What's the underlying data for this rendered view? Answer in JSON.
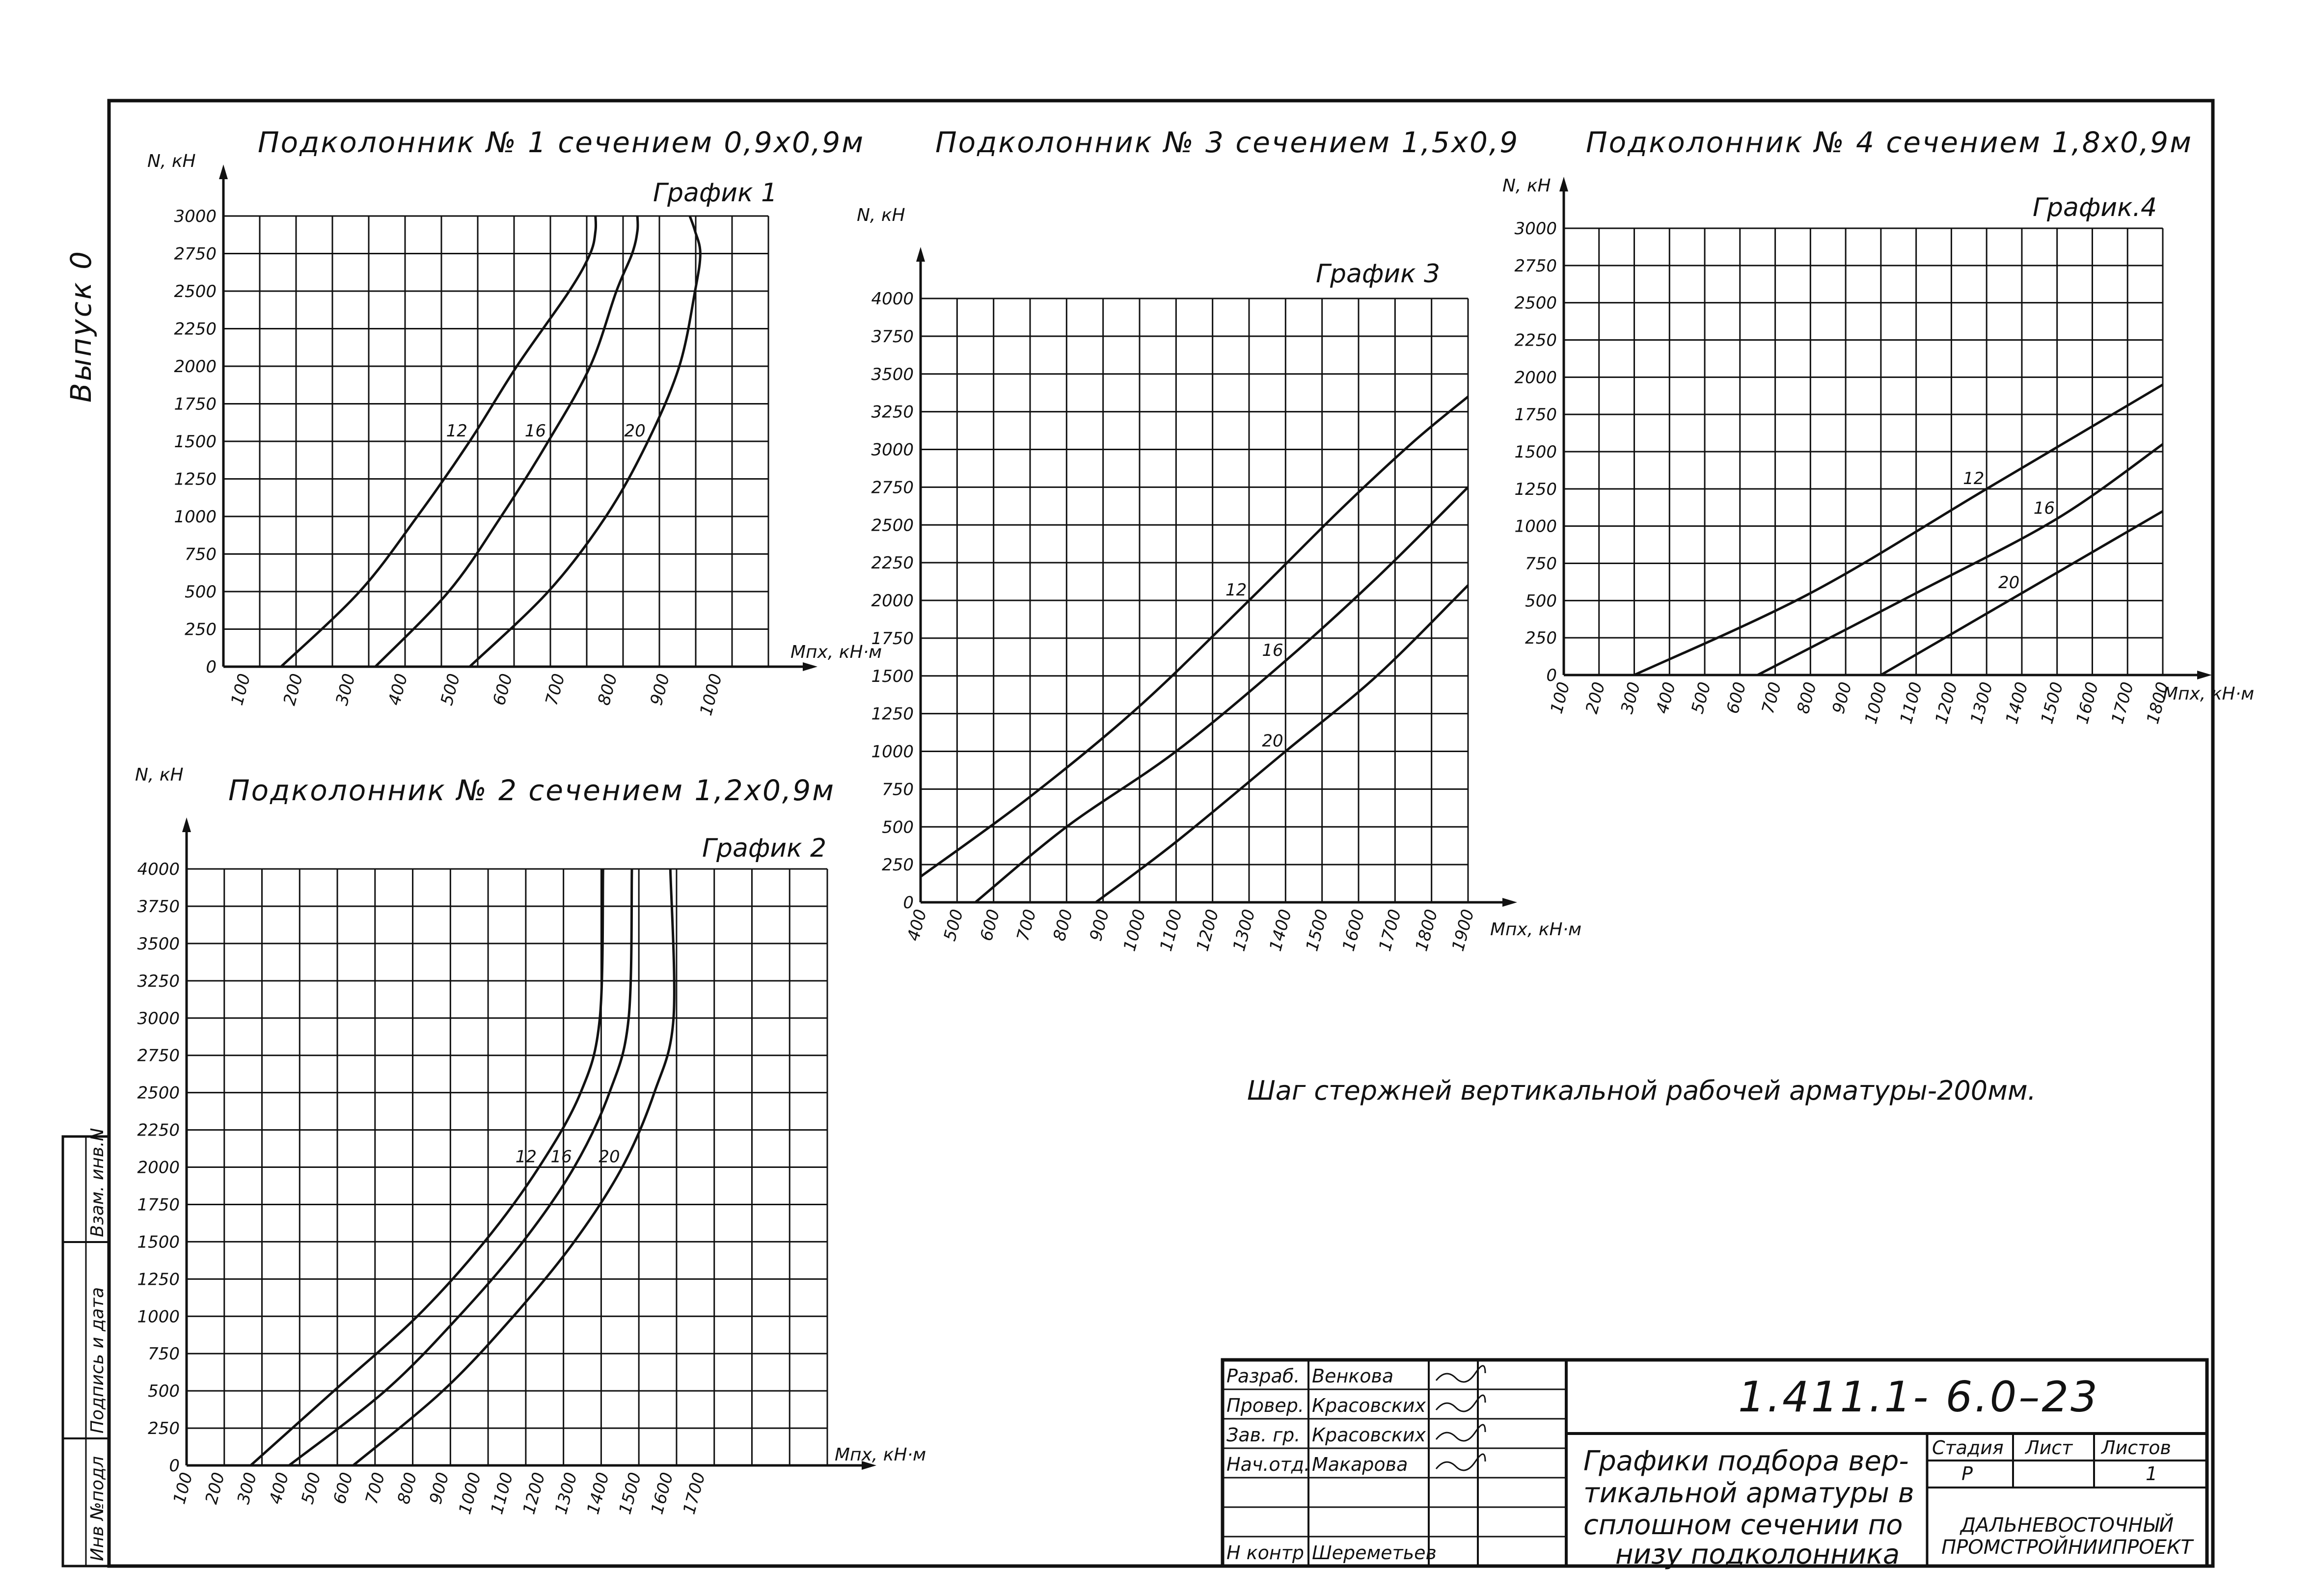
{
  "sheet": {
    "side_label": "Выпуск 0",
    "note": "Шаг стержней вертикальной рабочей арматуры-200мм.",
    "stamp_cells": [
      "Инв №подл",
      "Подпись и дата",
      "Взам. инв.N"
    ]
  },
  "title_block": {
    "code": "1.411.1- 6.0–23",
    "description_lines": [
      "Графики подбора вер-",
      "тикальной арматуры в",
      "сплошном сечении по",
      "низу подколонника"
    ],
    "stage_header": "Стадия",
    "sheet_header": "Лист",
    "sheets_header": "Листов",
    "stage_value": "Р",
    "sheets_value": "1",
    "organization_lines": [
      "ДАЛЬНЕВОСТОЧНЫЙ",
      "ПРОМСТРОЙНИИПРОЕКТ"
    ],
    "roles": [
      {
        "role": "Разраб.",
        "name": "Венкова"
      },
      {
        "role": "Провер.",
        "name": "Красовских"
      },
      {
        "role": "Зав. гр.",
        "name": "Красовских"
      },
      {
        "role": "Нач.отд.",
        "name": "Макарова"
      },
      {
        "role": "",
        "name": ""
      },
      {
        "role": "",
        "name": ""
      },
      {
        "role": "Н контр",
        "name": "Шереметьев"
      }
    ]
  },
  "chart_data": [
    {
      "type": "line",
      "title": "Подколонник № 1 сечением 0,9х0,9м",
      "label": "График 1",
      "ylabel": "N, кН",
      "xlabel": "Mпх, кН·м",
      "x_ticks": [
        100,
        200,
        300,
        400,
        500,
        600,
        700,
        800,
        900,
        1000
      ],
      "y_ticks": [
        0,
        250,
        500,
        750,
        1000,
        1250,
        1500,
        1750,
        2000,
        2250,
        2500,
        2750,
        3000
      ],
      "xlim": [
        60,
        1100
      ],
      "ylim": [
        0,
        3000
      ],
      "grid": true,
      "series": [
        {
          "name": "12",
          "x": [
            170,
            320,
            430,
            530,
            620,
            720,
            760,
            770,
            770
          ],
          "y": [
            0,
            500,
            1000,
            1500,
            2000,
            2500,
            2750,
            2900,
            3000
          ]
        },
        {
          "name": "16",
          "x": [
            350,
            490,
            590,
            680,
            760,
            810,
            840,
            850,
            850
          ],
          "y": [
            0,
            500,
            1000,
            1500,
            2000,
            2500,
            2750,
            2900,
            3000
          ]
        },
        {
          "name": "20",
          "x": [
            530,
            680,
            790,
            870,
            930,
            960,
            970,
            960,
            950
          ],
          "y": [
            0,
            500,
            1000,
            1500,
            2000,
            2500,
            2750,
            2900,
            3000
          ]
        }
      ]
    },
    {
      "type": "line",
      "title": "Подколонник № 2 сечением 1,2х0,9м",
      "label": "График 2",
      "ylabel": "N, кН",
      "xlabel": "Mпх, кН·м",
      "x_ticks": [
        100,
        200,
        300,
        400,
        500,
        600,
        700,
        800,
        900,
        1000,
        1100,
        1200,
        1300,
        1400,
        1500,
        1600,
        1700
      ],
      "y_ticks": [
        0,
        250,
        500,
        750,
        1000,
        1250,
        1500,
        1750,
        2000,
        2250,
        2500,
        2750,
        3000,
        3250,
        3500,
        3750,
        4000
      ],
      "xlim": [
        100,
        2100
      ],
      "ylim": [
        0,
        4000
      ],
      "grid": true,
      "series": [
        {
          "name": "12",
          "x": [
            300,
            560,
            820,
            1030,
            1200,
            1330,
            1390,
            1400
          ],
          "y": [
            0,
            500,
            1000,
            1500,
            2000,
            2500,
            3000,
            4000
          ]
        },
        {
          "name": "16",
          "x": [
            420,
            720,
            950,
            1150,
            1310,
            1420,
            1480,
            1490
          ],
          "y": [
            0,
            500,
            1000,
            1500,
            2000,
            2500,
            3000,
            4000
          ]
        },
        {
          "name": "20",
          "x": [
            620,
            900,
            1120,
            1310,
            1460,
            1560,
            1620,
            1610
          ],
          "y": [
            0,
            500,
            1000,
            1500,
            2000,
            2500,
            3000,
            4000
          ]
        }
      ]
    },
    {
      "type": "line",
      "title": "Подколонник № 3 сечением 1,5х0,9",
      "label": "График 3",
      "ylabel": "N, кН",
      "xlabel": "Mпх, кН·м",
      "x_ticks": [
        400,
        500,
        600,
        700,
        800,
        900,
        1000,
        1100,
        1200,
        1300,
        1400,
        1500,
        1600,
        1700,
        1800,
        1900
      ],
      "y_ticks": [
        0,
        250,
        500,
        750,
        1000,
        1250,
        1500,
        1750,
        2000,
        2250,
        2500,
        2750,
        3000,
        3250,
        3500,
        3750,
        4000
      ],
      "xlim": [
        400,
        1900
      ],
      "ylim": [
        0,
        4000
      ],
      "grid": true,
      "series": [
        {
          "name": "12",
          "x": [
            400,
            700,
            1000,
            1300,
            1550,
            1750,
            1900
          ],
          "y": [
            170,
            700,
            1300,
            2000,
            2600,
            3050,
            3350
          ]
        },
        {
          "name": "16",
          "x": [
            550,
            800,
            1100,
            1400,
            1650,
            1900
          ],
          "y": [
            0,
            500,
            1000,
            1600,
            2150,
            2750
          ]
        },
        {
          "name": "20",
          "x": [
            880,
            1100,
            1400,
            1650,
            1900
          ],
          "y": [
            0,
            400,
            1000,
            1500,
            2100
          ]
        }
      ]
    },
    {
      "type": "line",
      "title": "Подколонник № 4 сечением 1,8х0,9м",
      "label": "График.4",
      "ylabel": "N, кН",
      "xlabel": "Mпх, кН·м",
      "x_ticks": [
        100,
        200,
        300,
        400,
        500,
        600,
        700,
        800,
        900,
        1000,
        1100,
        1200,
        1300,
        1400,
        1500,
        1600,
        1700,
        1800
      ],
      "y_ticks": [
        0,
        250,
        500,
        750,
        1000,
        1250,
        1500,
        1750,
        2000,
        2250,
        2500,
        2750,
        3000
      ],
      "xlim": [
        100,
        1800
      ],
      "ylim": [
        0,
        3000
      ],
      "grid": true,
      "series": [
        {
          "name": "12",
          "x": [
            300,
            800,
            1300,
            1800
          ],
          "y": [
            0,
            550,
            1250,
            1950
          ]
        },
        {
          "name": "16",
          "x": [
            650,
            1100,
            1500,
            1800
          ],
          "y": [
            0,
            550,
            1050,
            1550
          ]
        },
        {
          "name": "20",
          "x": [
            1000,
            1400,
            1800
          ],
          "y": [
            0,
            550,
            1100
          ]
        }
      ]
    }
  ]
}
